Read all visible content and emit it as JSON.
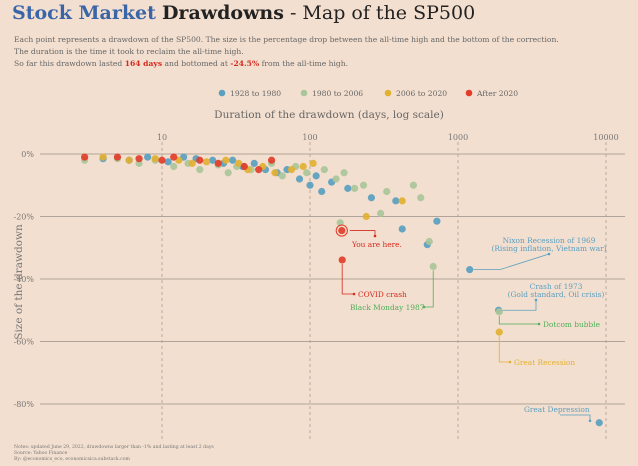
{
  "header": {
    "title_part1": "Stock Market",
    "title_part2": "Drawdowns",
    "title_part3": " - Map of the SP500",
    "subtitle_line1": "Each point represents a drawdown of the SP500. The size is the percentage drop between the all-time high and the bottom of the correction.",
    "subtitle_line2": "The duration is the time it took to reclaim the all-time high.",
    "subtitle_line3_pre": "So far this drawdown lasted ",
    "subtitle_days": "164 days",
    "subtitle_line3_mid": " and bottomed at ",
    "subtitle_pct": "-24.5%",
    "subtitle_line3_post": " from the all-time high."
  },
  "footnote": {
    "line1": "Notes: updated June 29, 2022, drawdowns larger than -1% and lasting at least 2 days",
    "line2": "Source: Yahoo Finance",
    "line3": "By: @economics_eco, economicsica.substack.com"
  },
  "chart_data": {
    "type": "scatter",
    "title": "Stock Market Drawdowns - Map of the SP500",
    "xlabel": "Duration of the drawdown (days, log scale)",
    "ylabel": "Size of the drawdown",
    "xscale": "log",
    "xlim": [
      1,
      12000
    ],
    "ylim": [
      -90,
      3
    ],
    "xticks": [
      10,
      100,
      1000,
      10000
    ],
    "xtick_labels": [
      "10",
      "100",
      "1000",
      "10000"
    ],
    "yticks": [
      0,
      -20,
      -40,
      -60,
      -80
    ],
    "ytick_labels": [
      "0%",
      "-20%",
      "-40%",
      "-60%",
      "-80%"
    ],
    "grid": "horizontal solid, vertical dashed",
    "legend_position": "top-center",
    "series": [
      {
        "name": "1928 to 1980",
        "color": "#5a9fc0",
        "points": [
          [
            4,
            -1.5
          ],
          [
            6,
            -2
          ],
          [
            8,
            -1
          ],
          [
            11,
            -2.5
          ],
          [
            14,
            -1
          ],
          [
            17,
            -1.5
          ],
          [
            22,
            -2
          ],
          [
            26,
            -3
          ],
          [
            30,
            -2
          ],
          [
            35,
            -4
          ],
          [
            42,
            -3
          ],
          [
            50,
            -5
          ],
          [
            60,
            -6
          ],
          [
            70,
            -5
          ],
          [
            85,
            -8
          ],
          [
            100,
            -10
          ],
          [
            110,
            -7
          ],
          [
            120,
            -12
          ],
          [
            140,
            -9
          ],
          [
            180,
            -11
          ],
          [
            260,
            -14
          ],
          [
            380,
            -15
          ],
          [
            420,
            -24
          ],
          [
            620,
            -29
          ],
          [
            720,
            -21.5
          ],
          [
            1200,
            -37
          ],
          [
            1880,
            -50
          ],
          [
            9000,
            -86
          ]
        ]
      },
      {
        "name": "1980 to 2006",
        "color": "#a9c59a",
        "points": [
          [
            3,
            -2
          ],
          [
            5,
            -1.5
          ],
          [
            7,
            -3
          ],
          [
            9,
            -2
          ],
          [
            12,
            -4
          ],
          [
            15,
            -3
          ],
          [
            18,
            -5
          ],
          [
            24,
            -3.5
          ],
          [
            28,
            -6
          ],
          [
            32,
            -4
          ],
          [
            40,
            -5
          ],
          [
            55,
            -3
          ],
          [
            65,
            -7
          ],
          [
            80,
            -4
          ],
          [
            95,
            -6
          ],
          [
            125,
            -5
          ],
          [
            150,
            -8
          ],
          [
            160,
            -22
          ],
          [
            170,
            -6
          ],
          [
            200,
            -11
          ],
          [
            230,
            -10
          ],
          [
            300,
            -19
          ],
          [
            330,
            -12
          ],
          [
            500,
            -10
          ],
          [
            560,
            -14
          ],
          [
            640,
            -28
          ],
          [
            680,
            -36
          ],
          [
            1900,
            -50.5
          ]
        ]
      },
      {
        "name": "2006 to 2020",
        "color": "#e2b032",
        "points": [
          [
            4,
            -1
          ],
          [
            6,
            -2
          ],
          [
            9,
            -1.5
          ],
          [
            13,
            -2
          ],
          [
            16,
            -3
          ],
          [
            20,
            -2.5
          ],
          [
            27,
            -2
          ],
          [
            33,
            -3
          ],
          [
            38,
            -5
          ],
          [
            48,
            -4
          ],
          [
            58,
            -6
          ],
          [
            75,
            -5
          ],
          [
            90,
            -4
          ],
          [
            105,
            -3
          ],
          [
            240,
            -20
          ],
          [
            420,
            -15
          ],
          [
            1900,
            -57
          ]
        ]
      },
      {
        "name": "After 2020",
        "color": "#e23d2a",
        "points": [
          [
            3,
            -1
          ],
          [
            5,
            -1
          ],
          [
            7,
            -1.5
          ],
          [
            10,
            -2
          ],
          [
            12,
            -1
          ],
          [
            18,
            -2
          ],
          [
            24,
            -3
          ],
          [
            36,
            -4
          ],
          [
            45,
            -5
          ],
          [
            55,
            -2
          ],
          [
            165,
            -33.9
          ],
          [
            164,
            -24.5
          ]
        ]
      }
    ],
    "current_point": {
      "x": 164,
      "y": -24.5
    },
    "annotations": [
      {
        "text": "You are here.",
        "x": 164,
        "y": -24.5,
        "color": "#d32a1e"
      },
      {
        "text": "COVID crash",
        "x": 165,
        "y": -33.9,
        "color": "#d32a1e"
      },
      {
        "text": "Black Monday 1987",
        "x": 680,
        "y": -36,
        "color": "#4fae5a"
      },
      {
        "text": "Nixon Recession of 1969",
        "text2": "(Rising inflation, Vietnam war)",
        "x": 1200,
        "y": -37,
        "color": "#5a9fc0"
      },
      {
        "text": "Crash of 1973",
        "text2": "(Gold standard, Oil crisis)",
        "x": 1880,
        "y": -50,
        "color": "#5a9fc0"
      },
      {
        "text": "Dotcom bubble",
        "x": 1900,
        "y": -50.5,
        "color": "#4fae5a"
      },
      {
        "text": "Great Recession",
        "x": 1900,
        "y": -57,
        "color": "#e2b032"
      },
      {
        "text": "Great Depression",
        "x": 9000,
        "y": -86,
        "color": "#5a9fc0"
      }
    ]
  }
}
